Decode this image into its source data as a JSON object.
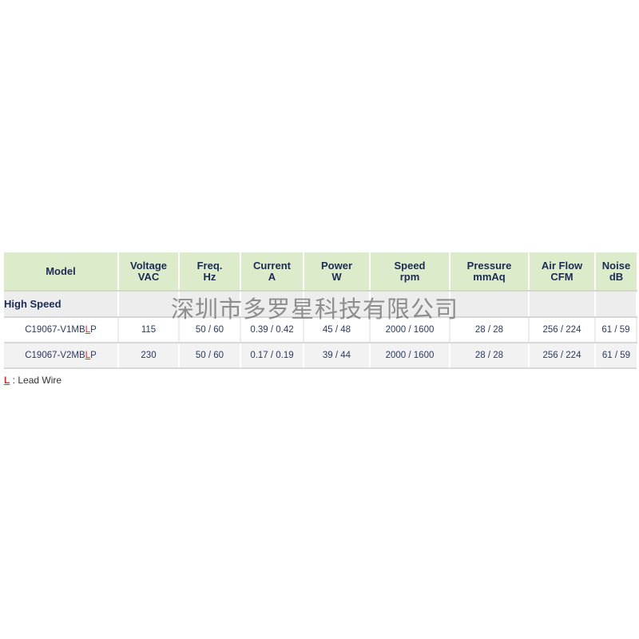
{
  "table": {
    "headers": [
      {
        "l1": "Model",
        "l2": ""
      },
      {
        "l1": "Voltage",
        "l2": "VAC"
      },
      {
        "l1": "Freq.",
        "l2": "Hz"
      },
      {
        "l1": "Current",
        "l2": "A"
      },
      {
        "l1": "Power",
        "l2": "W"
      },
      {
        "l1": "Speed",
        "l2": "rpm"
      },
      {
        "l1": "Pressure",
        "l2": "mmAq"
      },
      {
        "l1": "Air Flow",
        "l2": "CFM"
      },
      {
        "l1": "Noise",
        "l2": "dB"
      }
    ],
    "group_label": "High Speed",
    "rows": [
      {
        "model_prefix": "C19067-V1MB",
        "model_mark": "L",
        "model_suffix": "P",
        "cells": [
          "115",
          "50 / 60",
          "0.39 / 0.42",
          "45 / 48",
          "2000 / 1600",
          "28 / 28",
          "256 / 224",
          "61 / 59"
        ]
      },
      {
        "model_prefix": "C19067-V2MB",
        "model_mark": "L",
        "model_suffix": "P",
        "cells": [
          "230",
          "50 / 60",
          "0.17 / 0.19",
          "39 / 44",
          "2000 / 1600",
          "28 / 28",
          "256 / 224",
          "61 / 59"
        ]
      }
    ]
  },
  "note": {
    "mark": "L",
    "text": " : Lead Wire"
  },
  "watermark": "深圳市多罗星科技有限公司",
  "colors": {
    "header_bg": "#dcebc9",
    "mark": "#e02a2a",
    "text": "#1c2b55"
  }
}
